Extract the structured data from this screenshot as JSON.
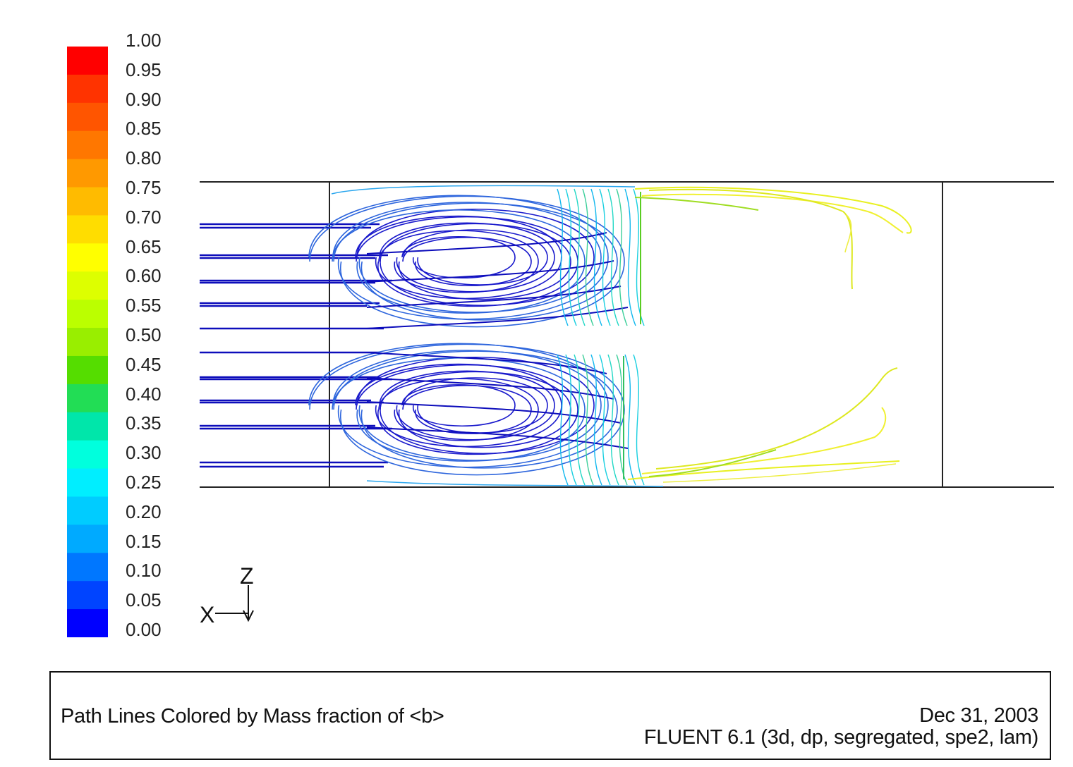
{
  "legend": {
    "ticks": [
      "1.00",
      "0.95",
      "0.90",
      "0.85",
      "0.80",
      "0.75",
      "0.70",
      "0.65",
      "0.60",
      "0.55",
      "0.50",
      "0.45",
      "0.40",
      "0.35",
      "0.30",
      "0.25",
      "0.20",
      "0.15",
      "0.10",
      "0.05",
      "0.00"
    ],
    "colors": [
      "#ff0000",
      "#ff3300",
      "#ff5500",
      "#ff7700",
      "#ff9900",
      "#ffbb00",
      "#ffdd00",
      "#ffff00",
      "#ddff00",
      "#bbff00",
      "#99ee00",
      "#55dd00",
      "#22dd55",
      "#00e6aa",
      "#00ffdd",
      "#00eeff",
      "#00ccff",
      "#00aaff",
      "#0077ff",
      "#0044ff",
      "#0000ff"
    ]
  },
  "axes": {
    "vertical": "Z",
    "horizontal": "X"
  },
  "footer": {
    "left": "Path Lines Colored by Mass fraction of <b>",
    "date": "Dec 31, 2003",
    "solver": "FLUENT 6.1 (3d, dp, segregated, spe2, lam)"
  }
}
